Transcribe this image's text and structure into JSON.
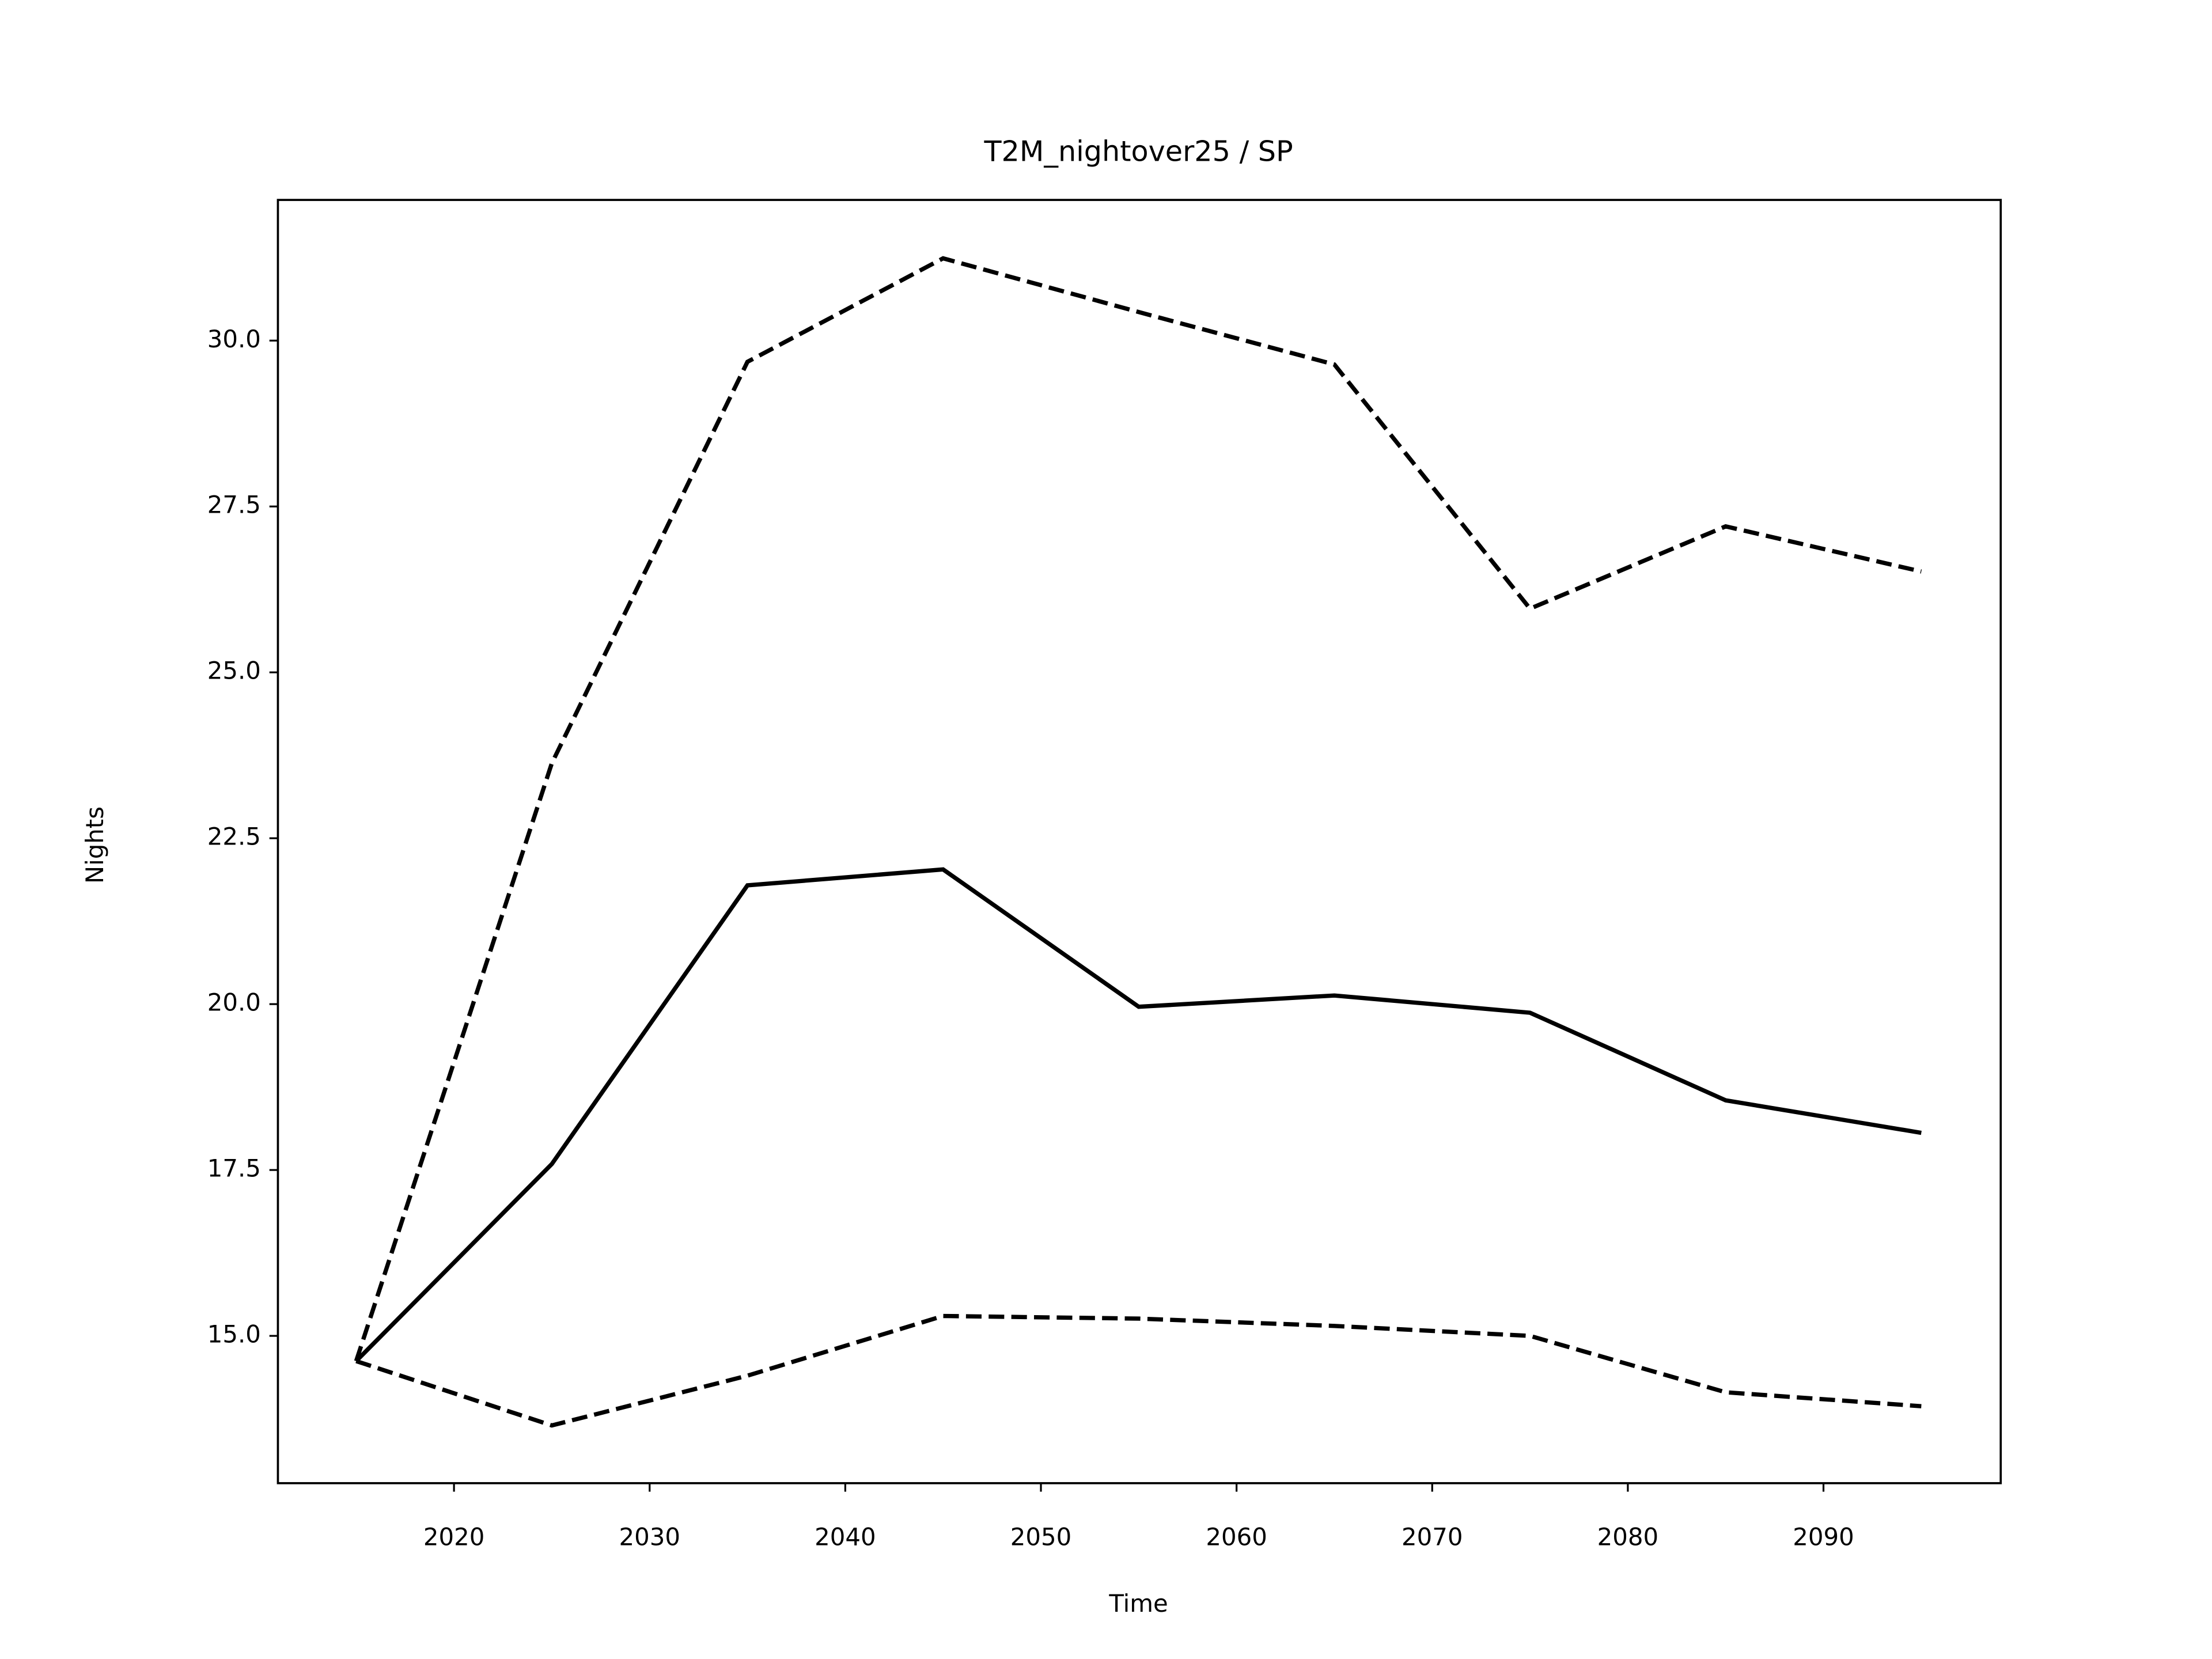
{
  "chart_data": {
    "type": "line",
    "title": "T2M_nightover25 / SP",
    "xlabel": "Time",
    "ylabel": "Nights",
    "x": [
      2015,
      2025,
      2035,
      2045,
      2055,
      2065,
      2075,
      2085,
      2095
    ],
    "series": [
      {
        "color": "#000000",
        "linestyle": "solid",
        "values": [
          14.62,
          17.59,
          21.79,
          22.03,
          19.96,
          20.13,
          19.87,
          18.55,
          18.06
        ]
      },
      {
        "color": "#000000",
        "linestyle": "dashed",
        "values": [
          14.62,
          23.63,
          29.68,
          31.24,
          30.43,
          29.64,
          25.96,
          27.2,
          26.52
        ]
      },
      {
        "color": "#000000",
        "linestyle": "dashed",
        "values": [
          14.62,
          13.65,
          14.4,
          15.3,
          15.26,
          15.15,
          15.0,
          14.15,
          13.94
        ]
      }
    ],
    "xlim": [
      2011,
      2099.06
    ],
    "xticks": [
      2020,
      2030,
      2040,
      2050,
      2060,
      2070,
      2080,
      2090
    ],
    "ylim": [
      12.78,
      32.12
    ],
    "yticks": [
      {
        "value": 15,
        "label": "15.0"
      },
      17.5,
      {
        "value": 20,
        "label": "20.0"
      },
      22.5,
      {
        "value": 25,
        "label": "25.0"
      },
      27.5,
      {
        "value": 30,
        "label": "30.0"
      }
    ]
  }
}
